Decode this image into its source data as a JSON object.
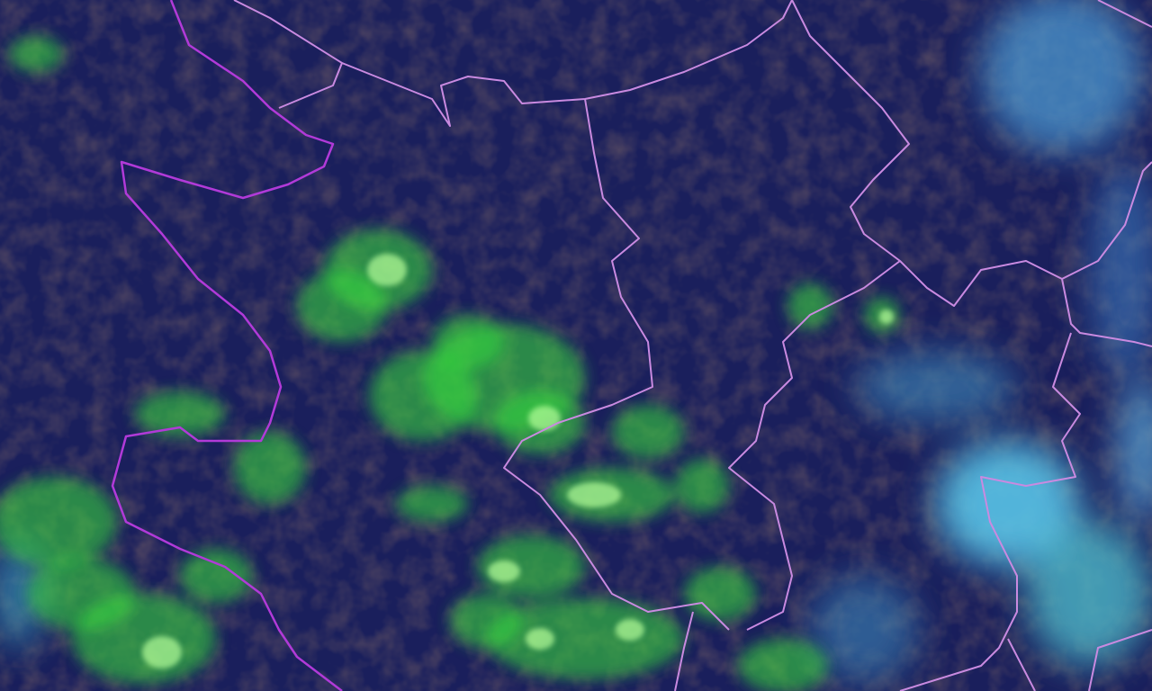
{
  "map": {
    "kind": "satellite-composite",
    "colors": {
      "background": "#1a1f5c",
      "dark_patches": "#140f1e",
      "vegetation_green": "#39e03a",
      "bright_green": "#b6ff9a",
      "cloud_cyan": "#5fc6e6",
      "boundary_main": "#b13ad8",
      "boundary_secondary": "#c98ae0"
    }
  }
}
